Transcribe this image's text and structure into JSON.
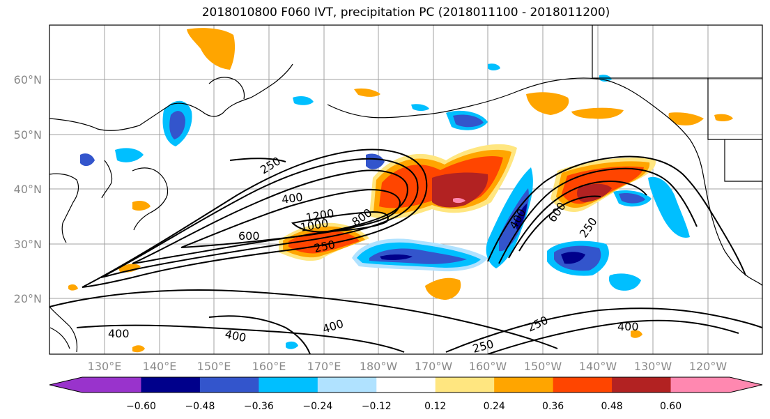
{
  "title": "2018010800 F060 IVT, precipitation PC (2018011100 - 2018011200)",
  "lat_labels": [
    "60°N",
    "50°N",
    "40°N",
    "30°N",
    "20°N"
  ],
  "lon_labels": [
    "130°E",
    "140°E",
    "150°E",
    "160°E",
    "170°E",
    "180°W",
    "170°W",
    "160°W",
    "150°W",
    "140°W",
    "130°W",
    "120°W"
  ],
  "contour_labels": [
    "250",
    "400",
    "600",
    "1200",
    "1000",
    "800",
    "250",
    "400",
    "600",
    "250",
    "400",
    "400",
    "400",
    "250",
    "250",
    "400"
  ],
  "colorbar": {
    "ticks": [
      "−0.60",
      "−0.48",
      "−0.36",
      "−0.24",
      "−0.12",
      "0.12",
      "0.24",
      "0.36",
      "0.48",
      "0.60"
    ],
    "colors": [
      "#9933cc",
      "#00008b",
      "#3355cc",
      "#00bfff",
      "#b0e2ff",
      "#ffffff",
      "#ffe680",
      "#ffa500",
      "#ff4500",
      "#b22222",
      "#ff88b0"
    ]
  },
  "shading_colors": {
    "pos_light": "#ffe680",
    "pos_mid": "#ffa500",
    "pos_strong": "#ff4500",
    "pos_max": "#b22222",
    "pos_extreme": "#ff88b0",
    "neg_light": "#b0e2ff",
    "neg_mid": "#00bfff",
    "neg_strong": "#3355cc",
    "neg_max": "#00008b"
  }
}
